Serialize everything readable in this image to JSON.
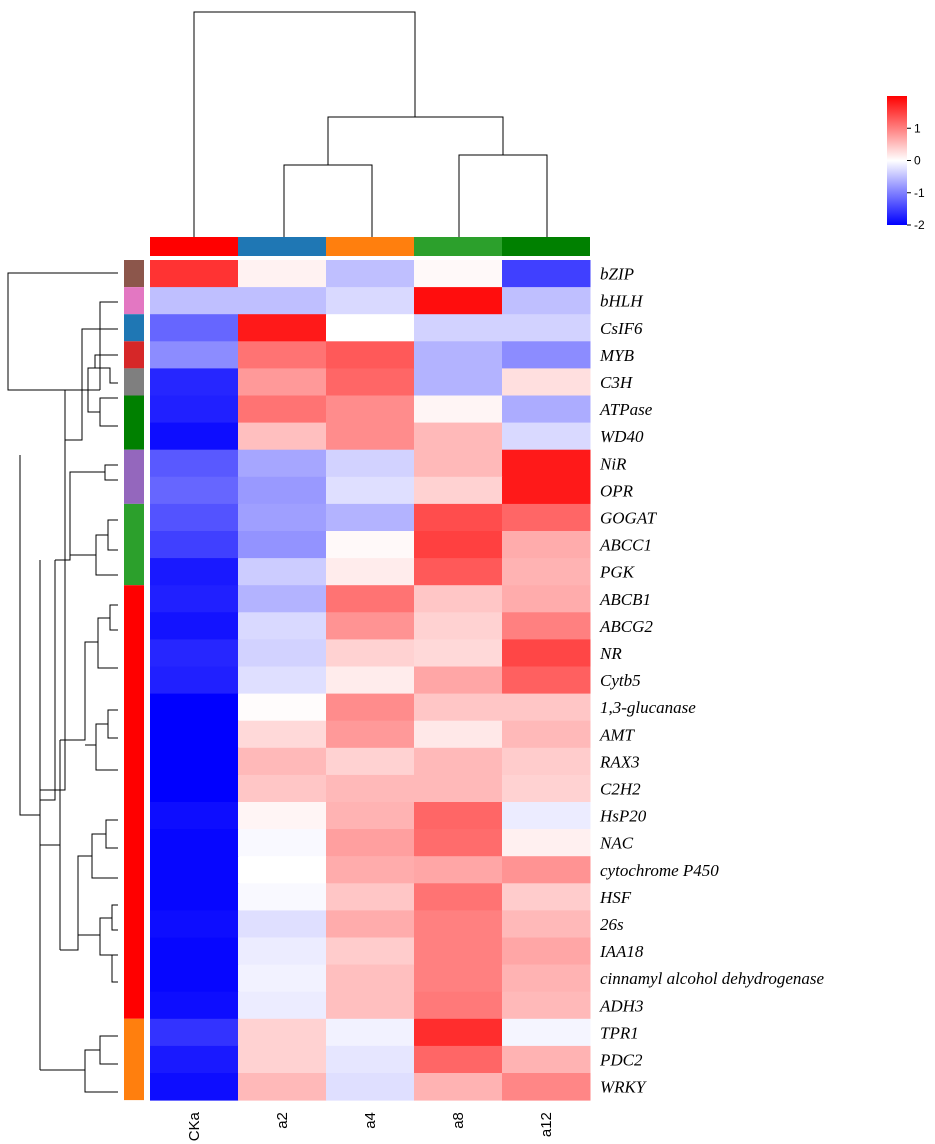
{
  "chart_data": {
    "type": "heatmap",
    "columns": [
      "CKa",
      "a2",
      "a4",
      "a8",
      "a12"
    ],
    "column_colors": [
      "#ff0000",
      "#1f77b4",
      "#ff7f0e",
      "#2ca02c",
      "#008000"
    ],
    "rows": [
      "bZIP",
      "bHLH",
      "CsIF6",
      "MYB",
      "C3H",
      "ATPase",
      "WD40",
      "NiR",
      "OPR",
      "GOGAT",
      "ABCC1",
      "PGK",
      "ABCB1",
      "ABCG2",
      "NR",
      "Cytb5",
      "1,3-glucanase",
      "AMT",
      "RAX3",
      "C2H2",
      "HsP20",
      "NAC",
      "cytochrome P450",
      "HSF",
      "26s",
      "IAA18",
      "cinnamyl alcohol dehydrogenase",
      "ADH3",
      "TPR1",
      "PDC2",
      "WRKY"
    ],
    "row_groups": [
      {
        "color": "#8c564b",
        "count": 1
      },
      {
        "color": "#e377c2",
        "count": 1
      },
      {
        "color": "#1f77b4",
        "count": 1
      },
      {
        "color": "#d62728",
        "count": 1
      },
      {
        "color": "#7f7f7f",
        "count": 1
      },
      {
        "color": "#008000",
        "count": 2
      },
      {
        "color": "#9467bd",
        "count": 2
      },
      {
        "color": "#2ca02c",
        "count": 3
      },
      {
        "color": "#ff0000",
        "count": 16
      },
      {
        "color": "#ff7f0e",
        "count": 3
      }
    ],
    "values": [
      [
        1.6,
        0.1,
        -0.5,
        0.05,
        -1.5
      ],
      [
        -0.5,
        -0.5,
        -0.3,
        1.9,
        -0.5
      ],
      [
        -1.2,
        1.8,
        0.0,
        -0.35,
        -0.35
      ],
      [
        -0.9,
        1.1,
        1.3,
        -0.6,
        -0.9
      ],
      [
        -1.7,
        0.8,
        1.2,
        -0.6,
        0.25
      ],
      [
        -1.75,
        1.1,
        0.9,
        0.08,
        -0.65
      ],
      [
        -1.9,
        0.5,
        0.9,
        0.55,
        -0.3
      ],
      [
        -1.3,
        -0.7,
        -0.35,
        0.55,
        1.8
      ],
      [
        -1.2,
        -0.8,
        -0.25,
        0.35,
        1.8
      ],
      [
        -1.35,
        -0.75,
        -0.6,
        1.4,
        1.2
      ],
      [
        -1.5,
        -0.85,
        0.05,
        1.5,
        0.65
      ],
      [
        -1.8,
        -0.4,
        0.15,
        1.3,
        0.6
      ],
      [
        -1.75,
        -0.6,
        1.1,
        0.45,
        0.65
      ],
      [
        -1.85,
        -0.3,
        0.85,
        0.35,
        1.0
      ],
      [
        -1.7,
        -0.35,
        0.35,
        0.3,
        1.45
      ],
      [
        -1.75,
        -0.25,
        0.15,
        0.7,
        1.25
      ],
      [
        -2.0,
        0.02,
        0.9,
        0.45,
        0.45
      ],
      [
        -2.0,
        0.3,
        0.8,
        0.18,
        0.55
      ],
      [
        -2.0,
        0.55,
        0.35,
        0.55,
        0.4
      ],
      [
        -2.0,
        0.45,
        0.55,
        0.55,
        0.35
      ],
      [
        -1.9,
        0.08,
        0.6,
        1.2,
        -0.15
      ],
      [
        -1.95,
        -0.05,
        0.75,
        1.15,
        0.12
      ],
      [
        -1.95,
        0.0,
        0.65,
        0.7,
        0.85
      ],
      [
        -1.95,
        -0.05,
        0.45,
        1.1,
        0.4
      ],
      [
        -1.9,
        -0.25,
        0.65,
        1.0,
        0.55
      ],
      [
        -1.95,
        -0.15,
        0.4,
        1.0,
        0.7
      ],
      [
        -1.95,
        -0.1,
        0.5,
        1.0,
        0.6
      ],
      [
        -1.9,
        -0.15,
        0.5,
        1.05,
        0.55
      ],
      [
        -1.6,
        0.35,
        -0.1,
        1.65,
        -0.08
      ],
      [
        -1.8,
        0.35,
        -0.2,
        1.2,
        0.6
      ],
      [
        -1.9,
        0.55,
        -0.25,
        0.6,
        0.95
      ]
    ],
    "legend": {
      "ticks": [
        1,
        0,
        -1,
        -2
      ],
      "range": [
        -2,
        2
      ],
      "colors": [
        "#0000ff",
        "#ffffff",
        "#ff0000"
      ],
      "placement": "top-right"
    },
    "dendrogram": {
      "column_order_top": "CKa | ((a2,a4),(a8,a12))",
      "row_clustering": true
    }
  }
}
